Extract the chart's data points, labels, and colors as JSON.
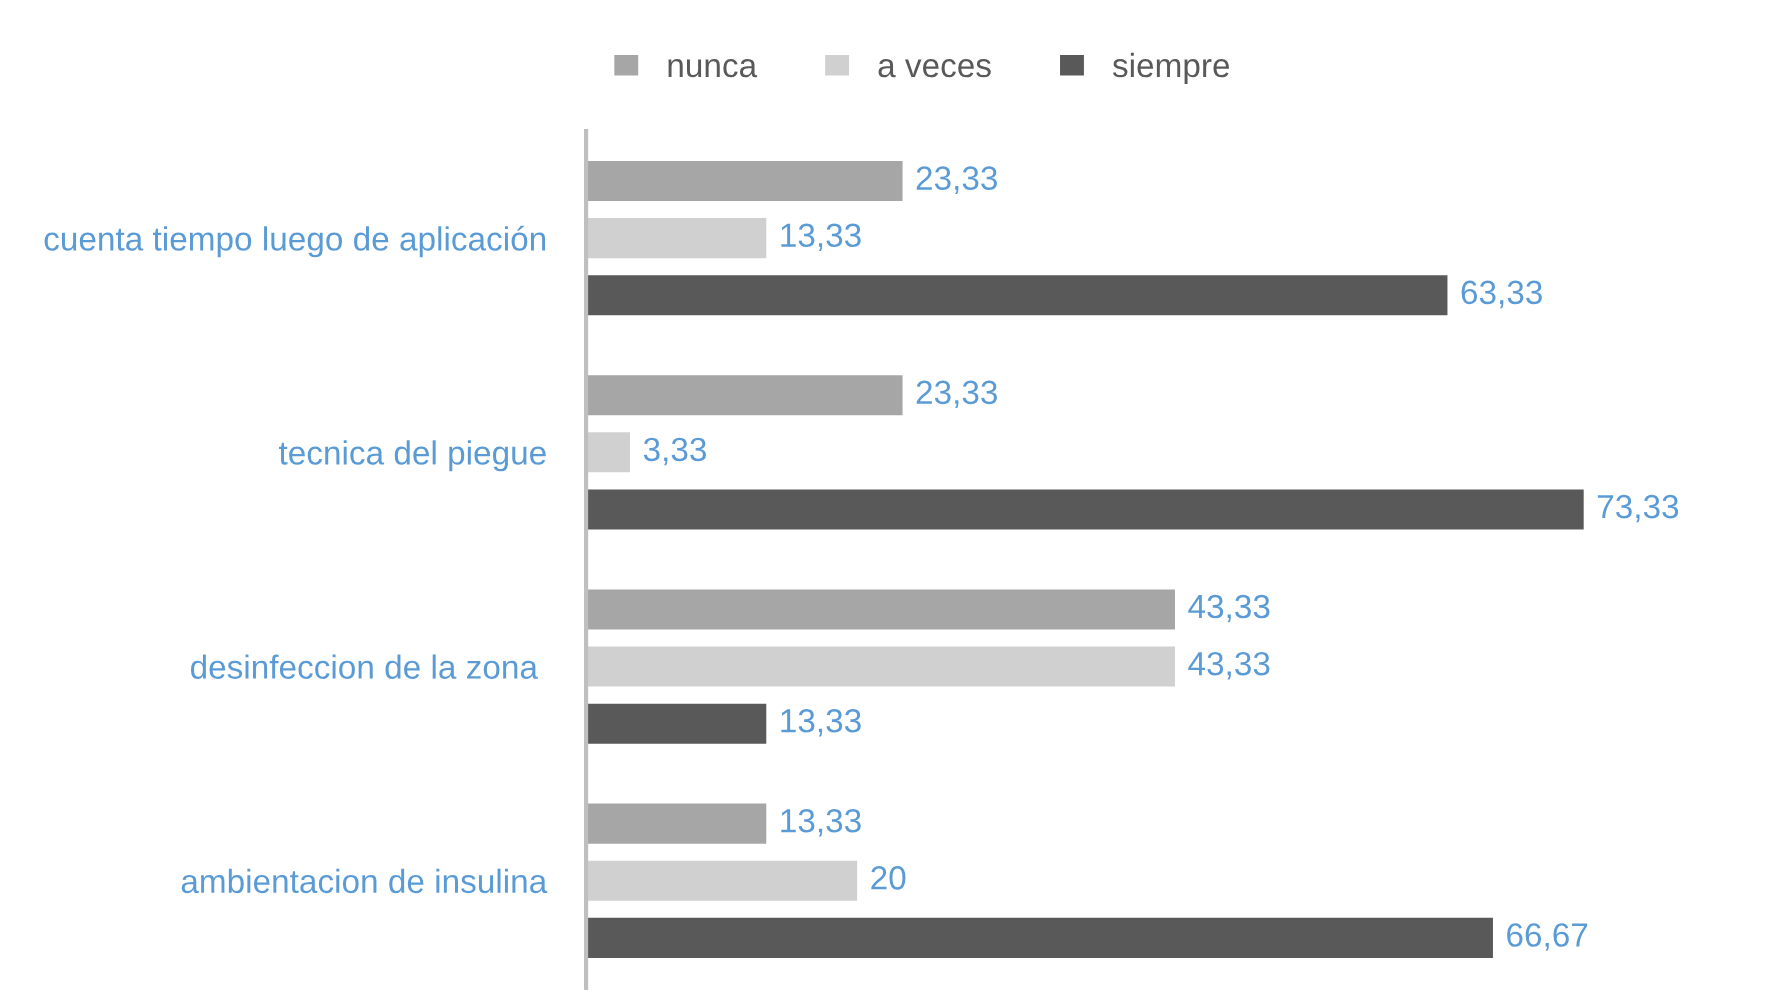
{
  "chart_data": {
    "type": "bar",
    "orientation": "horizontal",
    "categories": [
      "cuenta tiempo luego de aplicación",
      "tecnica del piegue",
      "desinfeccion de la zona ",
      "ambientacion de insulina"
    ],
    "series": [
      {
        "name": "nunca",
        "color": "#a6a6a6",
        "values": [
          23.33,
          23.33,
          43.33,
          13.33
        ],
        "value_labels": [
          "23,33",
          "23,33",
          "43,33",
          "13,33"
        ]
      },
      {
        "name": "a veces",
        "color": "#d0d0d0",
        "values": [
          13.33,
          3.33,
          43.33,
          20
        ],
        "value_labels": [
          "13,33",
          "3,33",
          "43,33",
          "20"
        ]
      },
      {
        "name": "siempre",
        "color": "#595959",
        "values": [
          63.33,
          73.33,
          13.33,
          66.67
        ],
        "value_labels": [
          "63,33",
          "73,33",
          "13,33",
          "66,67"
        ]
      }
    ],
    "legend": "top",
    "grid": false
  }
}
